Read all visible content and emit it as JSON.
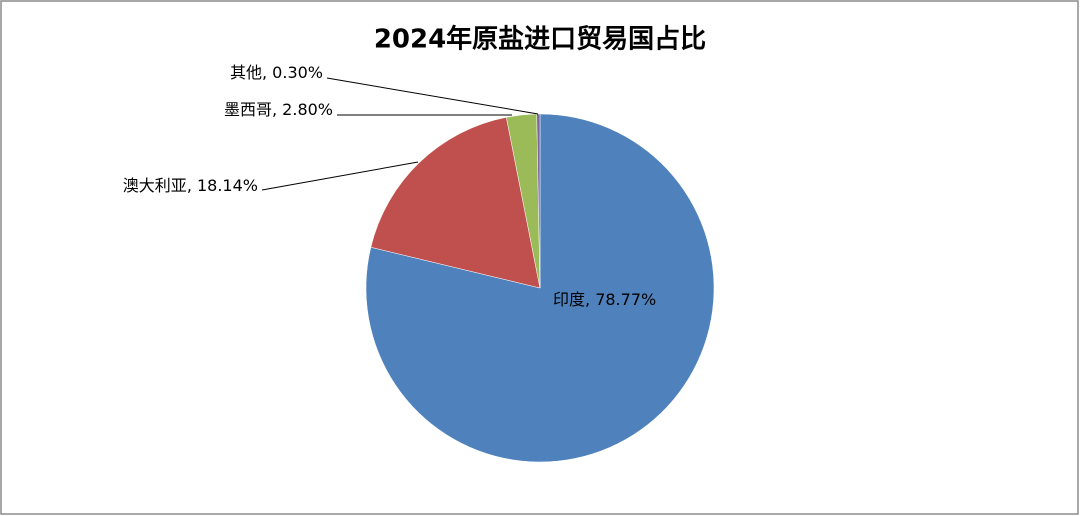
{
  "chart_data": {
    "type": "pie",
    "title": "2024年原盐进口贸易国占比",
    "categories": [
      "印度",
      "澳大利亚",
      "墨西哥",
      "其他"
    ],
    "values": [
      78.77,
      18.14,
      2.8,
      0.3
    ],
    "value_labels": [
      "78.77%",
      "18.14%",
      "2.80%",
      "0.30%"
    ],
    "label_separator": ", ",
    "colors": [
      "#4f81bd",
      "#c0504d",
      "#9bbb59",
      "#8064a2"
    ]
  }
}
